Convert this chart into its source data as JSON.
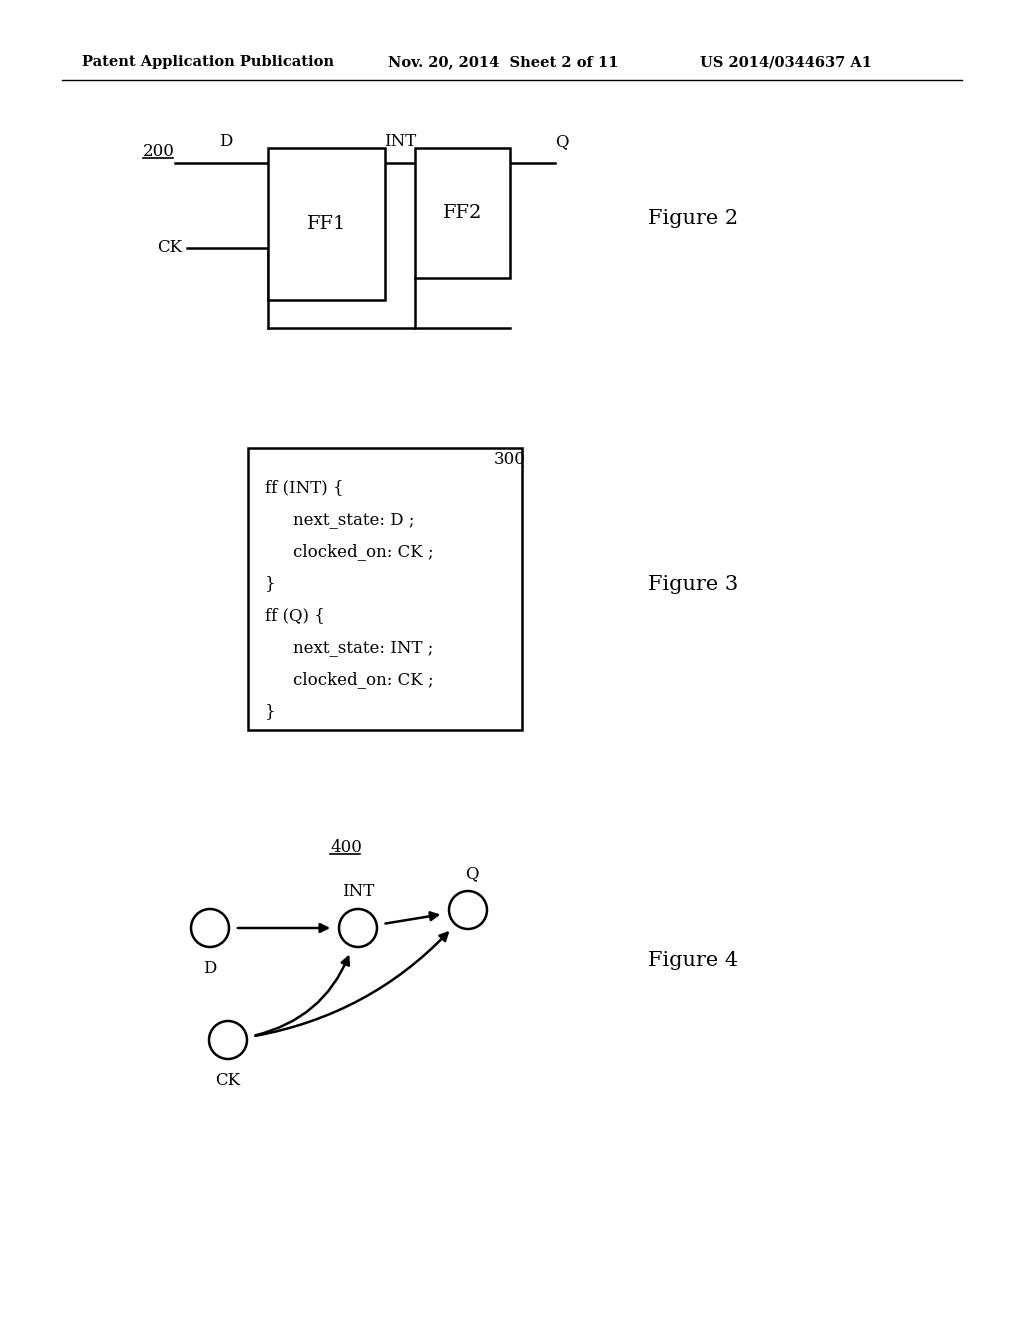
{
  "bg_color": "#ffffff",
  "header_left": "Patent Application Publication",
  "header_mid": "Nov. 20, 2014  Sheet 2 of 11",
  "header_right": "US 2014/0344637 A1",
  "fig2_label": "200",
  "fig2_D": "D",
  "fig2_INT": "INT",
  "fig2_Q": "Q",
  "fig2_CK": "CK",
  "fig2_FF1": "FF1",
  "fig2_FF2": "FF2",
  "fig2_caption": "Figure 2",
  "fig3_label": "300",
  "fig3_caption": "Figure 3",
  "fig3_code": [
    [
      "ff (INT) {",
      0
    ],
    [
      "next_state: D ;",
      1
    ],
    [
      "clocked_on: CK ;",
      1
    ],
    [
      "}",
      0
    ],
    [
      "ff (Q) {",
      0
    ],
    [
      "next_state: INT ;",
      1
    ],
    [
      "clocked_on: CK ;",
      1
    ],
    [
      "}",
      0
    ]
  ],
  "fig4_label": "400",
  "fig4_caption": "Figure 4",
  "fig4_nodes": [
    "D",
    "INT",
    "Q",
    "CK"
  ],
  "text_color": "#000000",
  "line_color": "#000000"
}
